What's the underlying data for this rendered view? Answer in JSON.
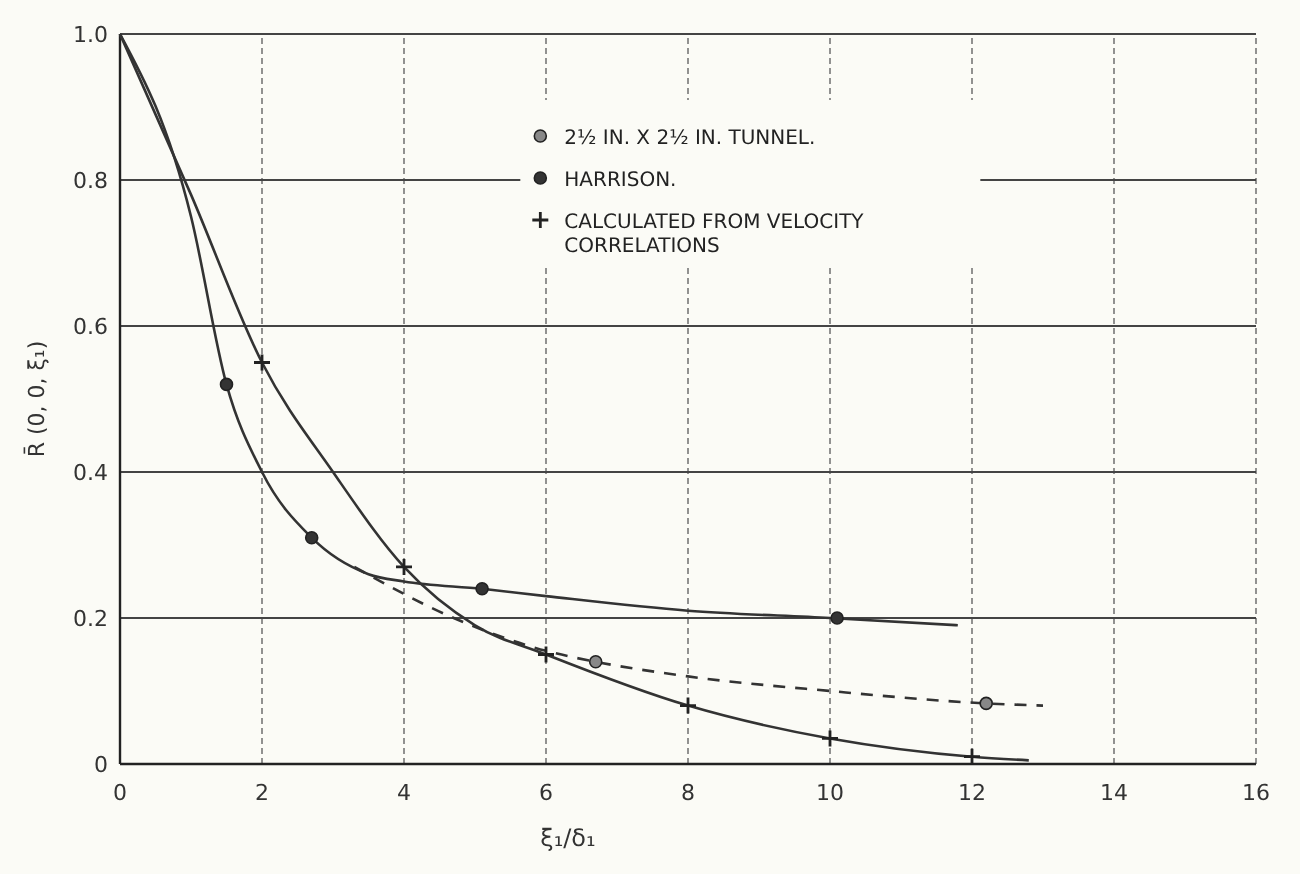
{
  "chart_data": {
    "type": "line",
    "xlabel": "ξ₁/δ₁",
    "ylabel": "R̄ (0, 0, ξ₁)",
    "xlim": [
      0,
      16
    ],
    "ylim": [
      0,
      1
    ],
    "xticks": [
      0,
      2,
      4,
      6,
      8,
      10,
      12,
      14,
      16
    ],
    "yticks": [
      0,
      0.2,
      0.4,
      0.6,
      0.8,
      {
        "value": 1,
        "label": "1.0"
      }
    ],
    "grid": true,
    "legend": "top right",
    "series": [
      {
        "color": "#333333",
        "line_style": "dashed",
        "marker": "none",
        "x": [
          3.3,
          4.7,
          6,
          6.7,
          8,
          10,
          12.2,
          13
        ],
        "values": [
          0.27,
          0.2,
          0.155,
          0.14,
          0.12,
          0.1,
          0.083,
          0.08
        ]
      },
      {
        "color": "#333333",
        "line_style": "solid",
        "marker": "none",
        "x": [
          0,
          1,
          1.5,
          2,
          2.7,
          3.5,
          4,
          5.1,
          6,
          8,
          10,
          11.8
        ],
        "values": [
          1,
          0.75,
          0.52,
          0.4,
          0.31,
          0.26,
          0.25,
          0.24,
          0.23,
          0.21,
          0.2,
          0.19
        ]
      },
      {
        "color": "#333333",
        "line_style": "solid",
        "marker": "none",
        "x": [
          0,
          1,
          2,
          3,
          4,
          5,
          6,
          8,
          10,
          12,
          12.8
        ],
        "values": [
          1,
          0.78,
          0.55,
          0.4,
          0.27,
          0.19,
          0.15,
          0.08,
          0.035,
          0.01,
          0.005
        ]
      },
      {
        "type": "scatter",
        "name": "2½ IN. X 2½ IN. TUNNEL.",
        "color": "#888888",
        "marker": "circle",
        "x": [
          6.7,
          12.2
        ],
        "values": [
          0.14,
          0.083
        ]
      },
      {
        "type": "scatter",
        "name": "HARRISON.",
        "color": "#333333",
        "marker": "circle",
        "x": [
          1.5,
          2.7,
          5.1,
          10.1
        ],
        "values": [
          0.52,
          0.31,
          0.24,
          0.2
        ]
      },
      {
        "type": "scatter",
        "name": "CALCULATED FROM VELOCITY CORRELATIONS",
        "color": "#222222",
        "marker": "cross",
        "x": [
          2,
          4,
          6,
          8,
          10,
          12
        ],
        "values": [
          0.55,
          0.27,
          0.15,
          0.08,
          0.035,
          0.01
        ]
      }
    ]
  }
}
